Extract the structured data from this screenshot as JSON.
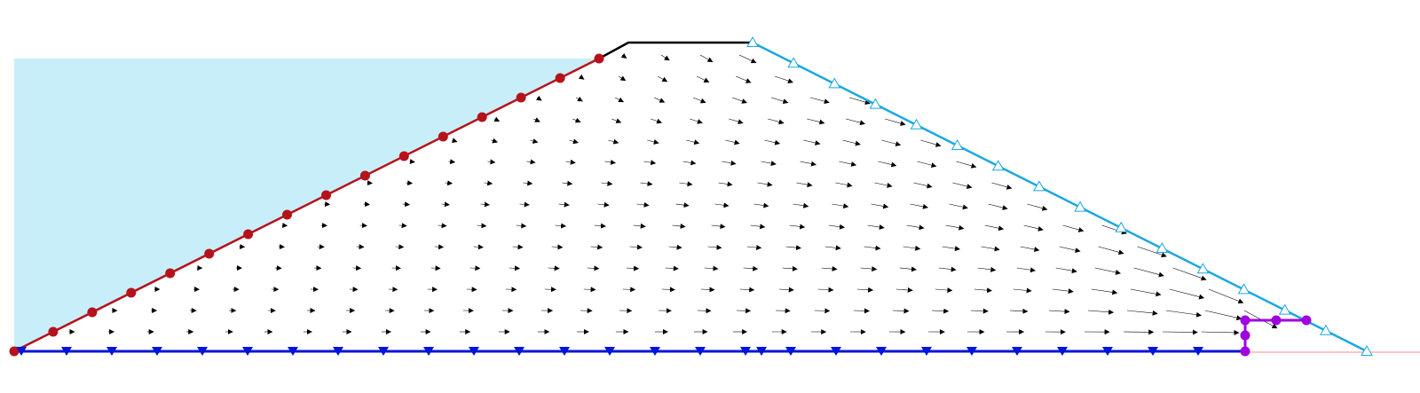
{
  "diagram": {
    "kind": "dam seepage flow vector field",
    "colors": {
      "reservoir_water": "#c8eefa",
      "upstream_face": "#b5121b",
      "downstream_face": "#1aa7e0",
      "crest": "#000000",
      "base": "#0014d8",
      "drain": "#a000e0",
      "flow_vectors": "#000000",
      "ground_line": "#ff8a8a"
    },
    "markers": {
      "upstream_face": "filled-circle",
      "downstream_face": "open-triangle-up",
      "base": "filled-triangle-down",
      "drain": "filled-circle"
    }
  }
}
